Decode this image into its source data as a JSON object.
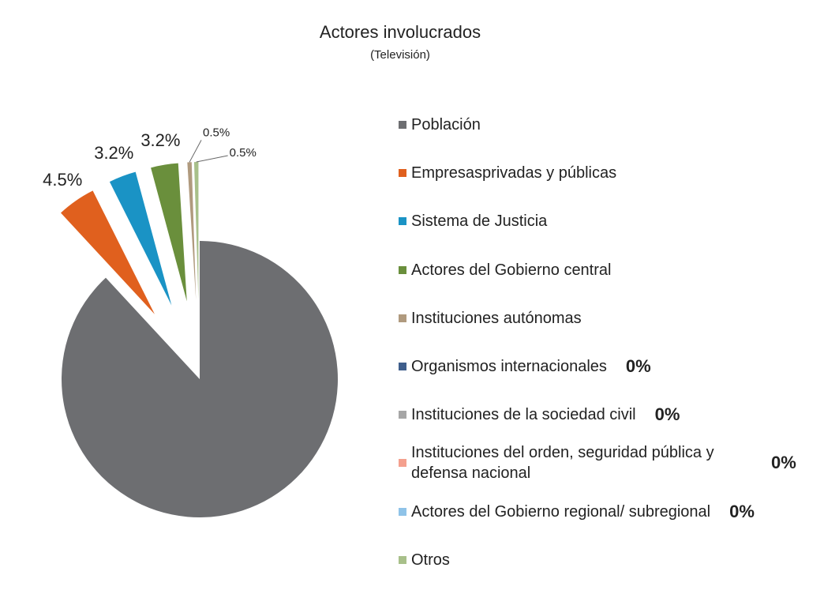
{
  "chart_data": {
    "type": "pie",
    "title": "Actores involucrados",
    "subtitle": "(Televisión)",
    "categories": [
      "Población",
      "Empresasprivadas y públicas",
      "Sistema de Justicia",
      "Actores del Gobierno central",
      "Instituciones autónomas",
      "Organismos internacionales",
      "Instituciones de la sociedad civil",
      "Instituciones del orden, seguridad pública y defensa nacional",
      "Actores del Gobierno regional/ subregional",
      "Otros"
    ],
    "values": [
      88.1,
      4.5,
      3.2,
      3.2,
      0.5,
      0,
      0,
      0,
      0,
      0.5
    ],
    "value_labels": [
      null,
      "4.5%",
      "3.2%",
      "3.2%",
      "0.5%",
      "0%",
      "0%",
      "0%",
      "0%",
      "0.5%"
    ],
    "colors": [
      "#6d6e71",
      "#e0601e",
      "#1a93c5",
      "#6a8f3c",
      "#b09a7e",
      "#3f5e8c",
      "#a6a6a6",
      "#f4a08e",
      "#8fc3e8",
      "#a8c08a"
    ],
    "legend": "right"
  }
}
